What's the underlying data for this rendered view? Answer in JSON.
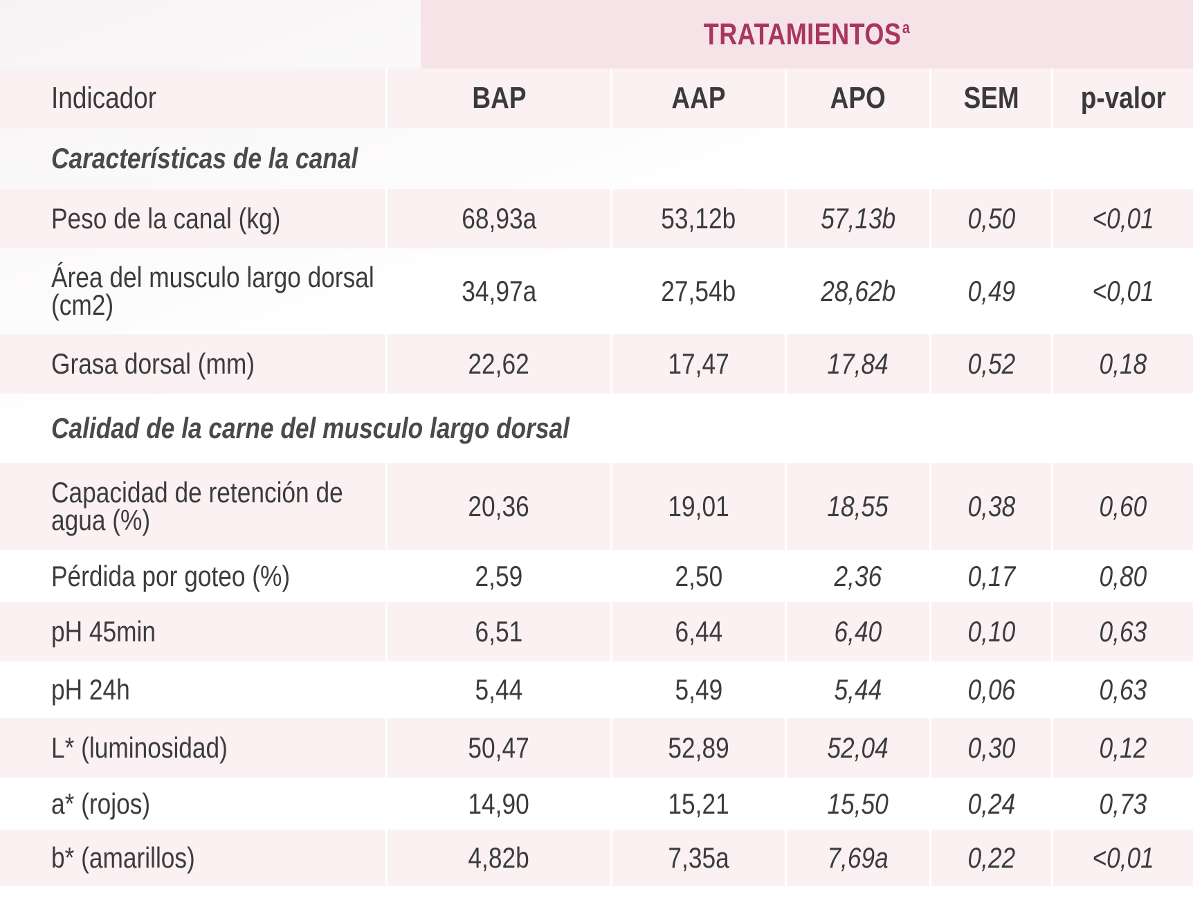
{
  "banner": {
    "title": "TRATAMIENTOS",
    "superscript": "a"
  },
  "columns": [
    "Indicador",
    "BAP",
    "AAP",
    "APO",
    "SEM",
    "p-valor"
  ],
  "sections": [
    {
      "title": "Características de la canal",
      "rows": [
        {
          "label": "Peso de la canal (kg)",
          "bap": "68,93a",
          "aap": "53,12b",
          "apo": "57,13b",
          "sem": "0,50",
          "p": "<0,01"
        },
        {
          "label": "Área del musculo largo dorsal (cm2)",
          "bap": "34,97a",
          "aap": "27,54b",
          "apo": "28,62b",
          "sem": "0,49",
          "p": "<0,01"
        },
        {
          "label": "Grasa dorsal (mm)",
          "bap": "22,62",
          "aap": "17,47",
          "apo": "17,84",
          "sem": "0,52",
          "p": "0,18"
        }
      ]
    },
    {
      "title": "Calidad de la carne del musculo largo dorsal",
      "rows": [
        {
          "label": "Capacidad de retención de agua (%)",
          "bap": "20,36",
          "aap": "19,01",
          "apo": "18,55",
          "sem": "0,38",
          "p": "0,60"
        },
        {
          "label": "Pérdida por goteo (%)",
          "bap": "2,59",
          "aap": "2,50",
          "apo": "2,36",
          "sem": "0,17",
          "p": "0,80"
        },
        {
          "label": "pH 45min",
          "bap": "6,51",
          "aap": "6,44",
          "apo": "6,40",
          "sem": "0,10",
          "p": "0,63"
        },
        {
          "label": "pH 24h",
          "bap": "5,44",
          "aap": "5,49",
          "apo": "5,44",
          "sem": "0,06",
          "p": "0,63"
        },
        {
          "label": "L* (luminosidad)",
          "bap": "50,47",
          "aap": "52,89",
          "apo": "52,04",
          "sem": "0,30",
          "p": "0,12"
        },
        {
          "label": "a* (rojos)",
          "bap": "14,90",
          "aap": "15,21",
          "apo": "15,50",
          "sem": "0,24",
          "p": "0,73"
        },
        {
          "label": "b* (amarillos)",
          "bap": "4,82b",
          "aap": "7,35a",
          "apo": "7,69a",
          "sem": "0,22",
          "p": "<0,01"
        }
      ]
    }
  ]
}
